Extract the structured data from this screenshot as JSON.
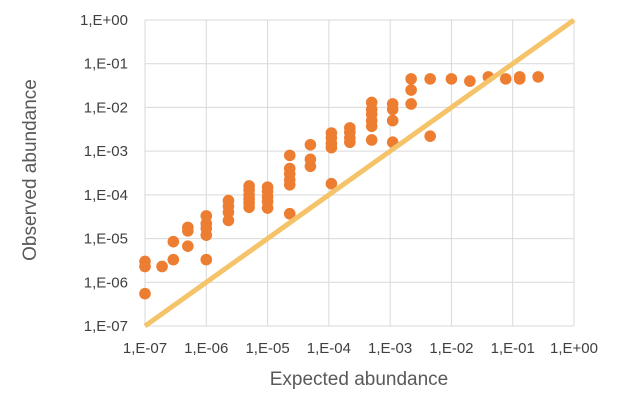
{
  "chart_data": {
    "type": "scatter",
    "title": "",
    "xlabel": "Expected abundance",
    "ylabel": "Observed abundance",
    "x_scale": "log",
    "y_scale": "log",
    "xlim": [
      1e-07,
      1
    ],
    "ylim": [
      1e-07,
      1
    ],
    "grid": true,
    "legend": "none",
    "x_tick_labels": [
      "1,E-07",
      "1,E-06",
      "1,E-05",
      "1,E-04",
      "1,E-03",
      "1,E-02",
      "1,E-01",
      "1,E+00"
    ],
    "y_tick_labels": [
      "1,E-07",
      "1,E-06",
      "1,E-05",
      "1,E-04",
      "1,E-03",
      "1,E-02",
      "1,E-01",
      "1,E+00"
    ],
    "series": [
      {
        "marker_color": "#ED7D31",
        "points": [
          [
            1e-07,
            3e-06
          ],
          [
            1e-07,
            2.3e-06
          ],
          [
            1e-07,
            5.5e-07
          ],
          [
            1.9e-07,
            2.3e-06
          ],
          [
            2.9e-07,
            8.5e-06
          ],
          [
            2.9e-07,
            3.3e-06
          ],
          [
            5e-07,
            1.8e-05
          ],
          [
            5e-07,
            1.5e-05
          ],
          [
            5e-07,
            6.7e-06
          ],
          [
            1e-06,
            3.3e-05
          ],
          [
            1e-06,
            2.2e-05
          ],
          [
            1e-06,
            1.7e-05
          ],
          [
            1e-06,
            1.2e-05
          ],
          [
            1e-06,
            3.3e-06
          ],
          [
            2.3e-06,
            7.4e-05
          ],
          [
            2.3e-06,
            5.5e-05
          ],
          [
            2.3e-06,
            4e-05
          ],
          [
            2.3e-06,
            2.6e-05
          ],
          [
            5e-06,
            0.00016
          ],
          [
            5e-06,
            0.00013
          ],
          [
            5e-06,
            0.0001
          ],
          [
            5e-06,
            8e-05
          ],
          [
            5e-06,
            6.5e-05
          ],
          [
            5e-06,
            5.2e-05
          ],
          [
            1e-05,
            0.00015
          ],
          [
            1e-05,
            0.00012
          ],
          [
            1e-05,
            9e-05
          ],
          [
            1e-05,
            7e-05
          ],
          [
            1e-05,
            5e-05
          ],
          [
            2.3e-05,
            0.0008
          ],
          [
            2.3e-05,
            0.0004
          ],
          [
            2.3e-05,
            0.0003
          ],
          [
            2.3e-05,
            0.00022
          ],
          [
            2.3e-05,
            0.00017
          ],
          [
            2.3e-05,
            3.7e-05
          ],
          [
            5e-05,
            0.0014
          ],
          [
            5e-05,
            0.00065
          ],
          [
            5e-05,
            0.00045
          ],
          [
            0.00011,
            0.0026
          ],
          [
            0.00011,
            0.002
          ],
          [
            0.00011,
            0.0015
          ],
          [
            0.00011,
            0.0012
          ],
          [
            0.00011,
            0.00018
          ],
          [
            0.00022,
            0.0034
          ],
          [
            0.00022,
            0.0027
          ],
          [
            0.00022,
            0.002
          ],
          [
            0.00022,
            0.0016
          ],
          [
            0.0005,
            0.013
          ],
          [
            0.0005,
            0.009
          ],
          [
            0.0005,
            0.007
          ],
          [
            0.0005,
            0.005
          ],
          [
            0.0005,
            0.0037
          ],
          [
            0.0005,
            0.0018
          ],
          [
            0.0011,
            0.012
          ],
          [
            0.0011,
            0.009
          ],
          [
            0.0011,
            0.005
          ],
          [
            0.0011,
            0.0016
          ],
          [
            0.0022,
            0.045
          ],
          [
            0.0022,
            0.025
          ],
          [
            0.0022,
            0.012
          ],
          [
            0.0045,
            0.045
          ],
          [
            0.0045,
            0.0022
          ],
          [
            0.01,
            0.045
          ],
          [
            0.02,
            0.04
          ],
          [
            0.04,
            0.05
          ],
          [
            0.077,
            0.045
          ],
          [
            0.13,
            0.05
          ],
          [
            0.13,
            0.045
          ],
          [
            0.26,
            0.05
          ]
        ]
      }
    ],
    "reference_line": {
      "from": [
        1e-07,
        1e-07
      ],
      "to": [
        1,
        1
      ],
      "color": "#F5C46A"
    }
  }
}
